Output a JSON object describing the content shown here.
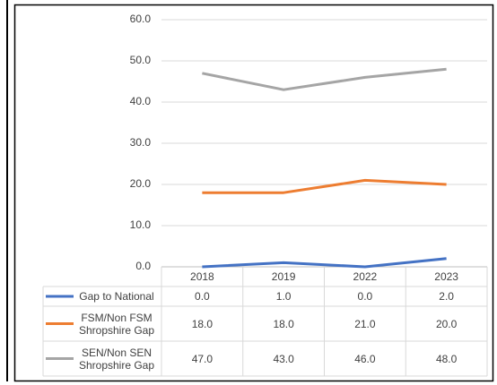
{
  "chart_data": {
    "type": "line",
    "categories": [
      "2018",
      "2019",
      "2022",
      "2023"
    ],
    "series": [
      {
        "name": "Gap to National",
        "color": "#4472c4",
        "values": [
          0,
          1,
          0,
          2
        ],
        "value_labels": [
          "0.0",
          "1.0",
          "0.0",
          "2.0"
        ]
      },
      {
        "name": "FSM/Non FSM Shropshire Gap",
        "color": "#ed7d31",
        "values": [
          18,
          18,
          21,
          20
        ],
        "value_labels": [
          "18.0",
          "18.0",
          "21.0",
          "20.0"
        ]
      },
      {
        "name": "SEN/Non SEN Shropshire Gap",
        "color": "#a5a5a5",
        "values": [
          47,
          43,
          46,
          48
        ],
        "value_labels": [
          "47.0",
          "43.0",
          "46.0",
          "48.0"
        ]
      }
    ],
    "ylim": [
      0,
      60
    ],
    "yticks": [
      {
        "value": 0,
        "label": "0.0"
      },
      {
        "value": 10,
        "label": "10.0"
      },
      {
        "value": 20,
        "label": "20.0"
      },
      {
        "value": 30,
        "label": "30.0"
      },
      {
        "value": 40,
        "label": "40.0"
      },
      {
        "value": 50,
        "label": "50.0"
      },
      {
        "value": 60,
        "label": "60.0"
      }
    ],
    "grid": true
  }
}
